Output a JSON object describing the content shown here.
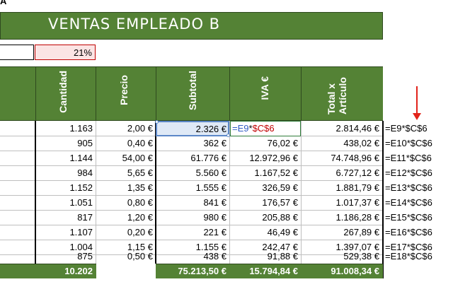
{
  "corner_glyph": "A",
  "banner": {
    "title": "VENTAS EMPLEADO B"
  },
  "percentage": {
    "value": "21%"
  },
  "headers": {
    "cantidad": "Cantidad",
    "precio": "Precio",
    "subtotal": "Subtotal",
    "iva": "IVA €",
    "total": "Total x Artículo"
  },
  "rows": [
    {
      "cantidad": "1.163",
      "precio": "2,00 €",
      "subtotal": "2.326 €",
      "iva": "",
      "total": "2.814,46 €",
      "formula": "=E9*$C$6"
    },
    {
      "cantidad": "905",
      "precio": "0,40 €",
      "subtotal": "362 €",
      "iva": "76,02 €",
      "total": "438,02 €",
      "formula": "=E10*$C$6"
    },
    {
      "cantidad": "1.144",
      "precio": "54,00 €",
      "subtotal": "61.776 €",
      "iva": "12.972,96 €",
      "total": "74.748,96 €",
      "formula": "=E11*$C$6"
    },
    {
      "cantidad": "984",
      "precio": "5,65 €",
      "subtotal": "5.560 €",
      "iva": "1.167,52 €",
      "total": "6.727,12 €",
      "formula": "=E12*$C$6"
    },
    {
      "cantidad": "1.152",
      "precio": "1,35 €",
      "subtotal": "1.555 €",
      "iva": "326,59 €",
      "total": "1.881,79 €",
      "formula": "=E13*$C$6"
    },
    {
      "cantidad": "1.051",
      "precio": "0,80 €",
      "subtotal": "841 €",
      "iva": "176,57 €",
      "total": "1.017,37 €",
      "formula": "=E14*$C$6"
    },
    {
      "cantidad": "817",
      "precio": "1,20 €",
      "subtotal": "980 €",
      "iva": "205,88 €",
      "total": "1.186,28 €",
      "formula": "=E15*$C$6"
    },
    {
      "cantidad": "1.107",
      "precio": "0,20 €",
      "subtotal": "221 €",
      "iva": "46,49 €",
      "total": "267,89 €",
      "formula": "=E16*$C$6"
    },
    {
      "cantidad": "1.004",
      "precio": "1,15 €",
      "subtotal": "1.155 €",
      "iva": "242,47 €",
      "total": "1.397,07 €",
      "formula": "=E17*$C$6"
    },
    {
      "cantidad": "875",
      "precio": "0,50 €",
      "subtotal": "438 €",
      "iva": "91,88 €",
      "total": "529,38 €",
      "formula": "=E18*$C$6"
    }
  ],
  "editing": {
    "part1": "=E9",
    "op": "*",
    "part2": "$C$6"
  },
  "totals": {
    "cantidad": "10.202",
    "subtotal": "75.213,50 €",
    "iva": "15.794,84 €",
    "total": "91.008,34 €"
  },
  "colors": {
    "header_green": "#548235",
    "arrow_red": "#e2231a",
    "ref_blue": "#2f5cc4",
    "ref_red": "#c00000"
  },
  "icons": {
    "arrow": "down-arrow-icon"
  }
}
